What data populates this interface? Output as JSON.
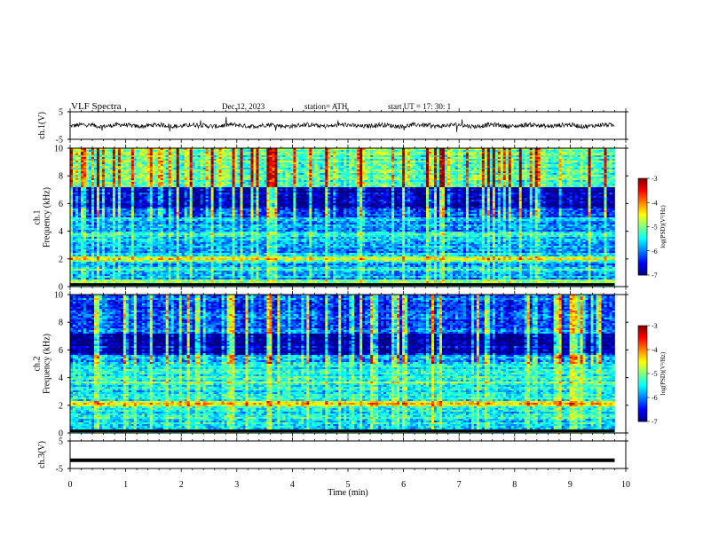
{
  "header": {
    "title": "VLF Spectra",
    "date": "Dec.12, 2023",
    "station": "station= ATH",
    "start_ut": "start UT = 17: 30: 1"
  },
  "chart_data": [
    {
      "type": "line",
      "name": "ch1-waveform",
      "ylabel": "ch.1(V)",
      "ylim": [
        -5,
        5
      ],
      "yticks": [
        "5",
        "-5"
      ],
      "x_range_min": [
        0,
        9.8
      ],
      "description_level": "noisy waveform oscillating near 0 V, amplitude about ±1 V with occasional spikes"
    },
    {
      "type": "heatmap",
      "name": "ch1-spectrogram",
      "ylabel": "ch.1\nFrequency (kHz)",
      "ylabel_lines": [
        "ch.1",
        "Frequency (kHz)"
      ],
      "ylim": [
        0,
        10
      ],
      "yticks": [
        "0",
        "2",
        "4",
        "6",
        "8",
        "10"
      ],
      "x_range_min": [
        0,
        9.8
      ],
      "colorbar": {
        "label": "log(PSD)(V²/Hz)",
        "range": [
          -7,
          -3
        ],
        "ticks": [
          "-3",
          "-4",
          "-5",
          "-6",
          "-7"
        ]
      },
      "bands": [
        {
          "freq_khz": 2.0,
          "log_psd": -4.6
        },
        {
          "freq_khz": 1.2,
          "log_psd": -5.2
        },
        {
          "freq_khz": 0.3,
          "log_psd": -4.8
        },
        {
          "freq_khz": 3.8,
          "log_psd": -5.3
        },
        {
          "freq_khz": 4.8,
          "log_psd": -5.4
        },
        {
          "freq_khz": 6.5,
          "log_psd": -6.3
        },
        {
          "freq_khz": 9.0,
          "log_psd": -5.0
        }
      ]
    },
    {
      "type": "heatmap",
      "name": "ch2-spectrogram",
      "ylabel_lines": [
        "ch.2",
        "Frequency (kHz)"
      ],
      "ylim": [
        0,
        10
      ],
      "yticks": [
        "0",
        "2",
        "4",
        "6",
        "8",
        "10"
      ],
      "x_range_min": [
        0,
        9.8
      ],
      "colorbar": {
        "label": "log(PSD)(V²/Hz)",
        "range": [
          -7,
          -3
        ],
        "ticks": [
          "-3",
          "-4",
          "-5",
          "-6",
          "-7"
        ]
      },
      "bands": [
        {
          "freq_khz": 2.1,
          "log_psd": -4.2
        },
        {
          "freq_khz": 3.6,
          "log_psd": -4.9
        },
        {
          "freq_khz": 1.2,
          "log_psd": -5.3
        },
        {
          "freq_khz": 4.6,
          "log_psd": -5.5
        },
        {
          "freq_khz": 7.5,
          "log_psd": -6.5
        }
      ]
    },
    {
      "type": "line",
      "name": "ch3-waveform",
      "ylabel": "ch.3(V)",
      "ylim": [
        -5,
        5
      ],
      "yticks": [
        "5",
        "-5"
      ],
      "x_range_min": [
        0,
        9.8
      ],
      "constant_value_v": -2
    }
  ],
  "xaxis": {
    "label": "Time (min)",
    "ticks": [
      "0",
      "1",
      "2",
      "3",
      "4",
      "5",
      "6",
      "7",
      "8",
      "9",
      "10"
    ],
    "range": [
      0,
      10
    ]
  }
}
